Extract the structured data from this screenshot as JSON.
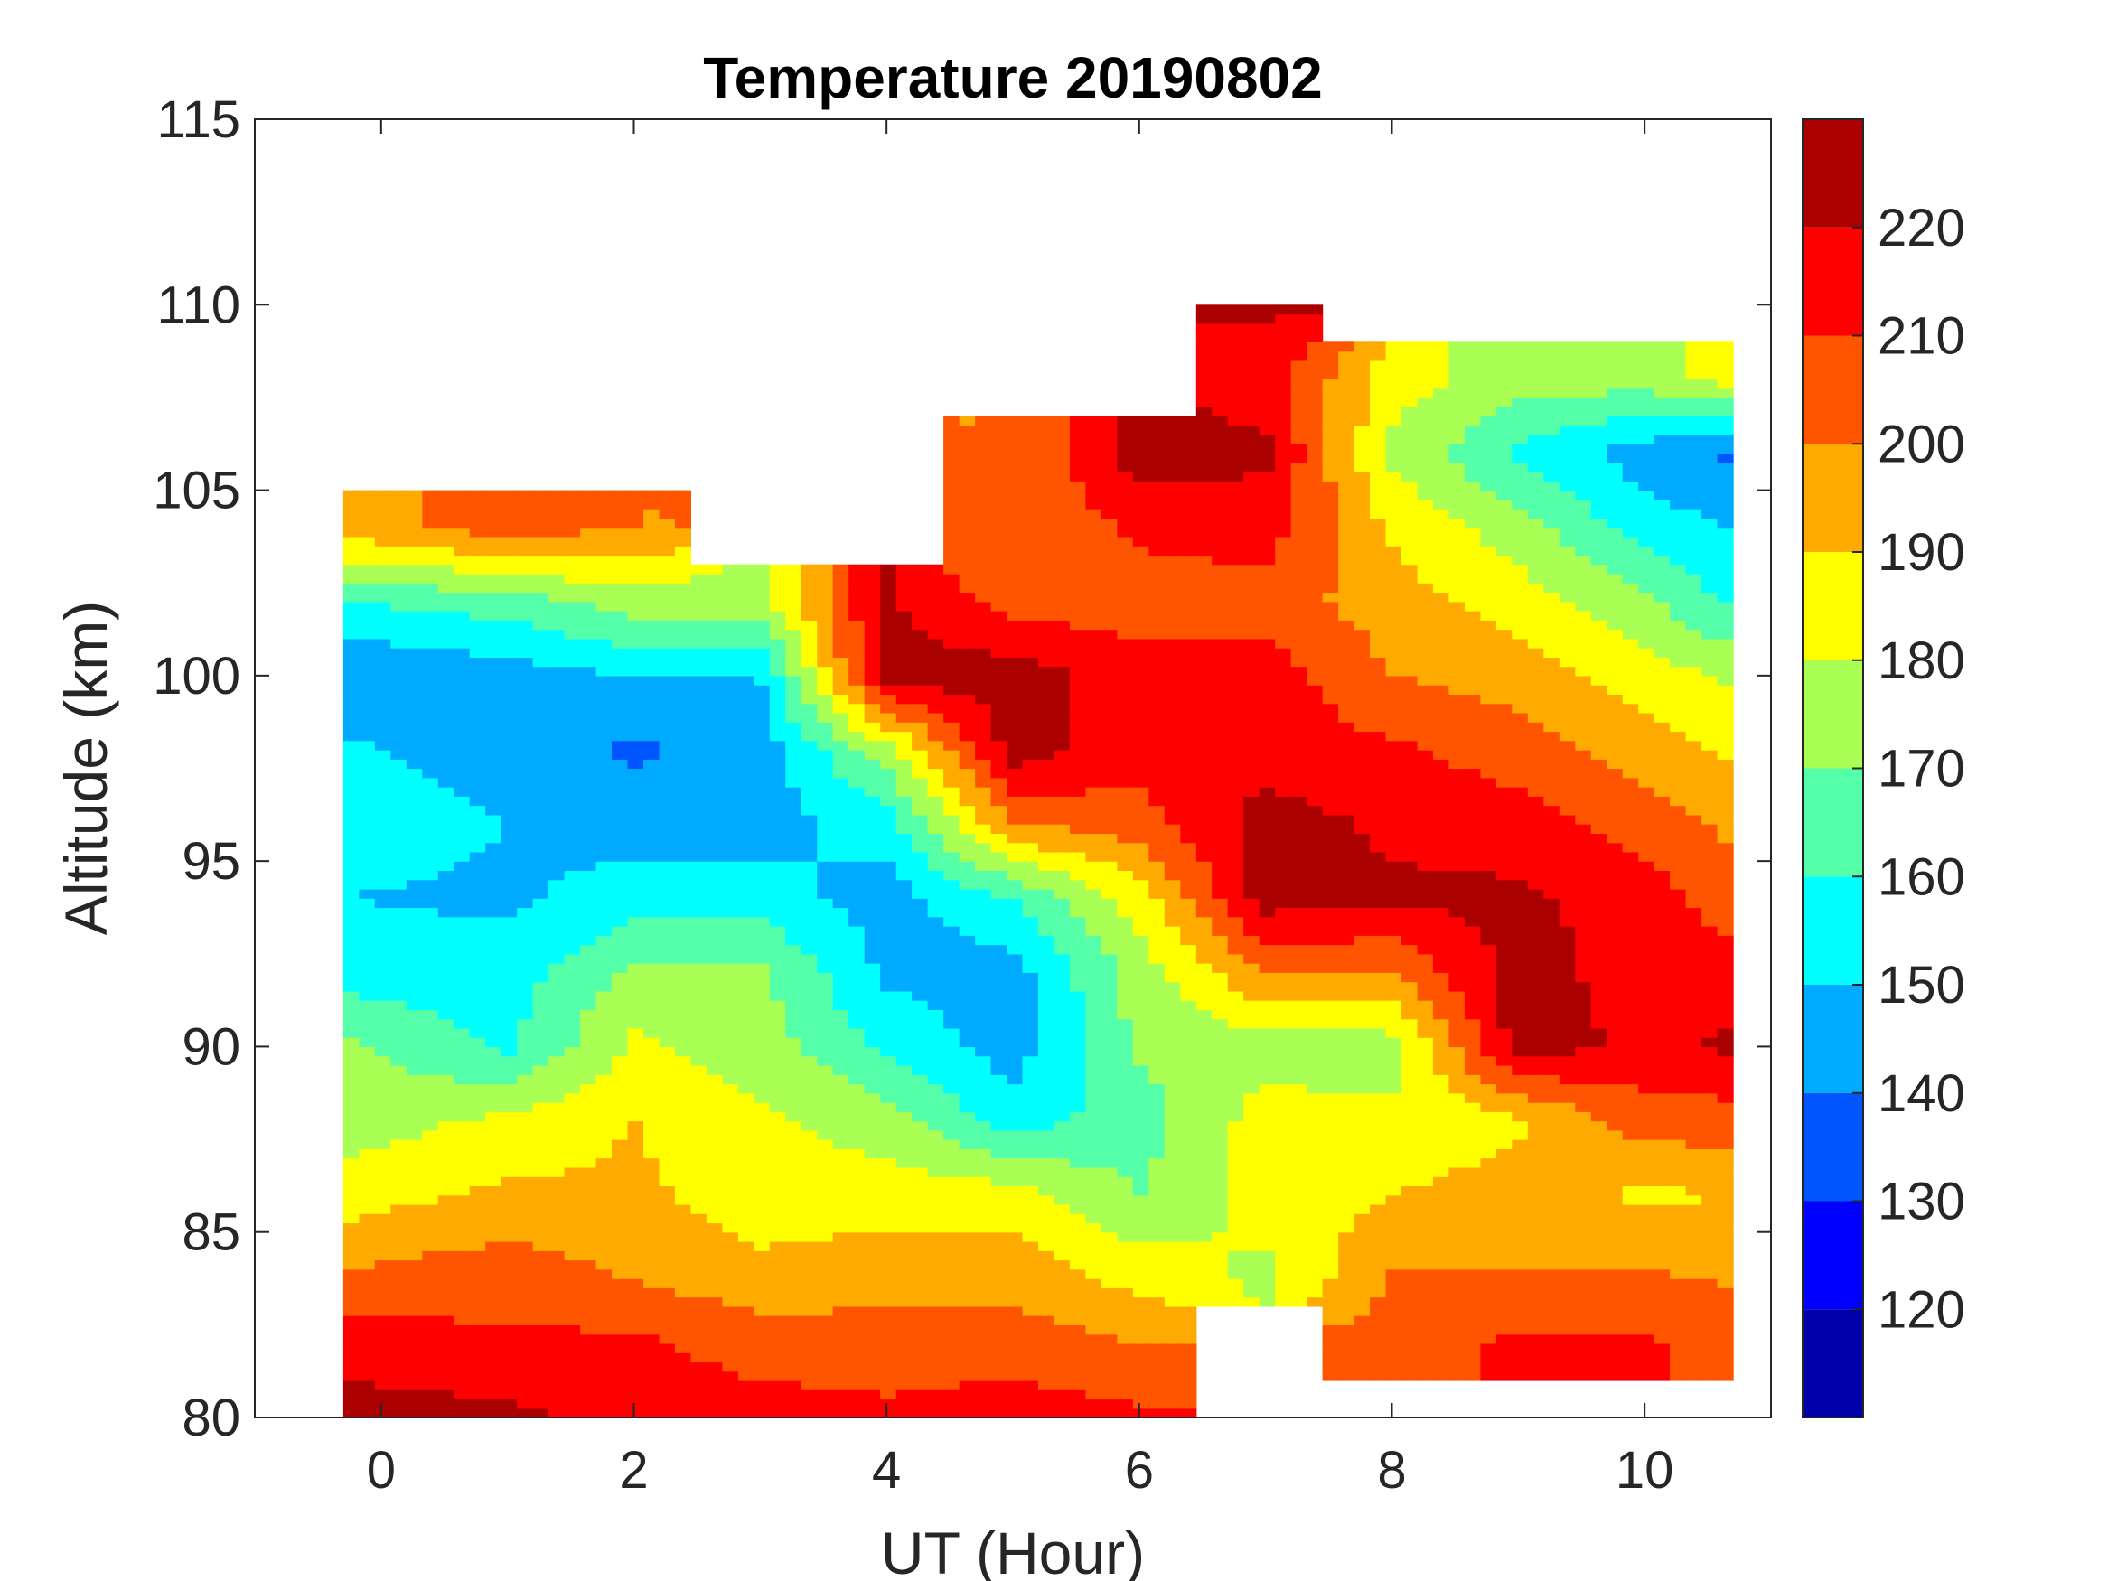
{
  "chart_data": {
    "type": "heatmap",
    "subtype": "filled-contour",
    "title": "Temperature 20190802",
    "xlabel": "UT (Hour)",
    "ylabel": "Altitude (km)",
    "xlim": [
      -1,
      11
    ],
    "ylim": [
      80,
      115
    ],
    "xticks": [
      "0",
      "2",
      "4",
      "6",
      "8",
      "10"
    ],
    "xtick_values": [
      0,
      2,
      4,
      6,
      8,
      10
    ],
    "yticks": [
      "80",
      "85",
      "90",
      "95",
      "100",
      "105",
      "110",
      "115"
    ],
    "ytick_values": [
      80,
      85,
      90,
      95,
      100,
      105,
      110,
      115
    ],
    "colorbar": {
      "range": [
        110,
        230
      ],
      "levels": [
        110,
        120,
        130,
        140,
        150,
        160,
        170,
        180,
        190,
        200,
        210,
        220,
        230
      ],
      "colors": [
        "#0000aa",
        "#0000ff",
        "#0055ff",
        "#00aaff",
        "#00ffff",
        "#55ffaa",
        "#aaff55",
        "#ffff00",
        "#ffaa00",
        "#ff5500",
        "#ff0000",
        "#aa0000"
      ],
      "ticks": [
        "120",
        "130",
        "140",
        "150",
        "160",
        "170",
        "180",
        "190",
        "200",
        "210",
        "220"
      ],
      "tick_values": [
        120,
        130,
        140,
        150,
        160,
        170,
        180,
        190,
        200,
        210,
        220
      ]
    },
    "x": [
      -0.3,
      1,
      2,
      3,
      4,
      5,
      6,
      7,
      8,
      9,
      10,
      10.7
    ],
    "y": [
      80,
      82,
      84,
      86,
      88,
      90,
      92,
      94,
      96,
      98,
      100,
      102,
      104,
      106,
      108,
      110
    ],
    "z_by_x": [
      [
        225,
        215,
        200,
        185,
        175,
        172,
        155,
        150,
        155,
        152,
        140,
        160,
        195,
        null,
        null,
        null
      ],
      [
        222,
        212,
        205,
        192,
        182,
        158,
        155,
        148,
        150,
        145,
        145,
        165,
        205,
        null,
        null,
        null
      ],
      [
        218,
        212,
        198,
        192,
        190,
        182,
        172,
        155,
        145,
        138,
        150,
        175,
        200,
        null,
        null,
        null
      ],
      [
        215,
        205,
        192,
        185,
        182,
        175,
        172,
        155,
        145,
        145,
        150,
        175,
        null,
        null,
        null,
        null
      ],
      [
        212,
        205,
        195,
        185,
        175,
        158,
        148,
        145,
        155,
        175,
        225,
        222,
        null,
        null,
        null,
        null
      ],
      [
        215,
        205,
        195,
        185,
        155,
        145,
        145,
        160,
        200,
        225,
        225,
        205,
        200,
        200,
        null,
        null
      ],
      [
        212,
        200,
        185,
        170,
        165,
        172,
        175,
        185,
        205,
        215,
        215,
        205,
        212,
        225,
        null,
        null
      ],
      [
        null,
        null,
        178,
        185,
        185,
        175,
        200,
        225,
        225,
        215,
        215,
        205,
        215,
        222,
        215,
        222
      ],
      [
        null,
        205,
        200,
        190,
        182,
        175,
        200,
        222,
        218,
        212,
        200,
        195,
        188,
        178,
        185,
        null
      ],
      [
        null,
        212,
        200,
        195,
        188,
        225,
        225,
        222,
        215,
        205,
        195,
        185,
        175,
        158,
        175,
        null
      ],
      [
        null,
        212,
        200,
        188,
        205,
        218,
        215,
        215,
        205,
        195,
        185,
        172,
        155,
        145,
        175,
        null
      ],
      [
        null,
        205,
        198,
        190,
        205,
        222,
        215,
        205,
        198,
        188,
        178,
        158,
        150,
        138,
        185,
        null
      ]
    ]
  }
}
